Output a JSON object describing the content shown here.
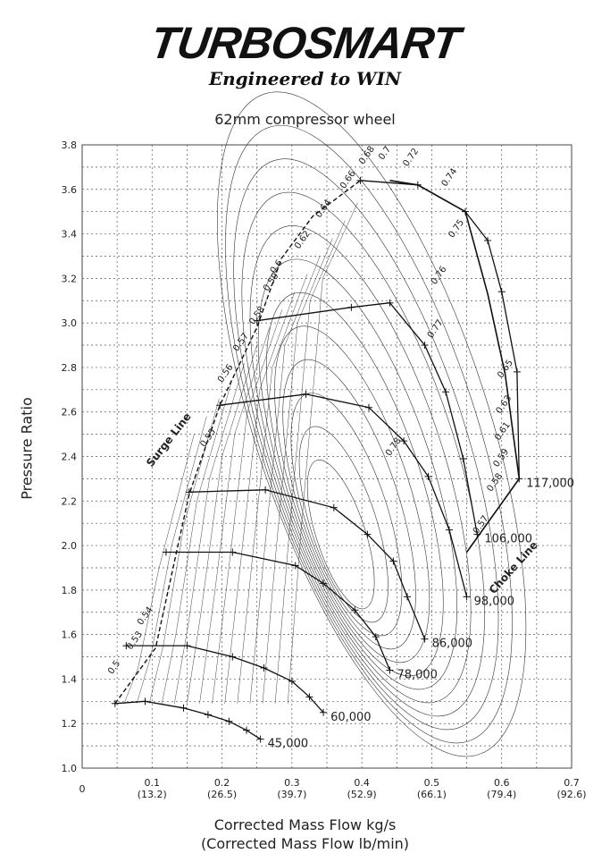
{
  "brand": {
    "logo_text": "TURBOSMART",
    "tagline": "Engineered to WIN"
  },
  "chart_data": {
    "type": "line",
    "title": "62mm compressor wheel",
    "xlabel": "Corrected Mass Flow kg/s",
    "xlabel2": "(Corrected Mass Flow lb/min)",
    "ylabel": "Pressure Ratio",
    "xlim": [
      0,
      0.7
    ],
    "ylim": [
      1.0,
      3.8
    ],
    "grid": true,
    "x_ticks": [
      "0",
      "0.1",
      "0.2",
      "0.3",
      "0.4",
      "0.5",
      "0.6",
      "0.7"
    ],
    "x_ticks_secondary": [
      "",
      "(13.2)",
      "(26.5)",
      "(39.7)",
      "(52.9)",
      "(66.1)",
      "(79.4)",
      "(92.6)"
    ],
    "y_ticks": [
      "1.0",
      "1.2",
      "1.4",
      "1.6",
      "1.8",
      "2.0",
      "2.2",
      "2.4",
      "2.6",
      "2.8",
      "3.0",
      "3.2",
      "3.4",
      "3.6",
      "3.8"
    ],
    "surge_line": {
      "label": "Surge Line",
      "points": [
        [
          0.047,
          1.29
        ],
        [
          0.105,
          1.54
        ],
        [
          0.153,
          2.23
        ],
        [
          0.197,
          2.63
        ],
        [
          0.25,
          2.98
        ],
        [
          0.285,
          3.29
        ],
        [
          0.33,
          3.48
        ],
        [
          0.398,
          3.64
        ]
      ]
    },
    "choke_line": {
      "label": "Choke Line",
      "points": [
        [
          0.44,
          3.64
        ],
        [
          0.48,
          3.62
        ],
        [
          0.548,
          3.5
        ],
        [
          0.58,
          3.13
        ],
        [
          0.605,
          2.77
        ],
        [
          0.625,
          2.3
        ],
        [
          0.55,
          1.97
        ]
      ]
    },
    "speed_lines": [
      {
        "label": "45,000",
        "points": [
          [
            0.047,
            1.29
          ],
          [
            0.09,
            1.3
          ],
          [
            0.145,
            1.27
          ],
          [
            0.18,
            1.24
          ],
          [
            0.21,
            1.21
          ],
          [
            0.235,
            1.17
          ],
          [
            0.255,
            1.13
          ]
        ]
      },
      {
        "label": "60,000",
        "points": [
          [
            0.063,
            1.55
          ],
          [
            0.15,
            1.55
          ],
          [
            0.215,
            1.5
          ],
          [
            0.26,
            1.45
          ],
          [
            0.3,
            1.39
          ],
          [
            0.325,
            1.32
          ],
          [
            0.345,
            1.25
          ]
        ]
      },
      {
        "label": "78,000",
        "points": [
          [
            0.12,
            1.97
          ],
          [
            0.215,
            1.97
          ],
          [
            0.305,
            1.91
          ],
          [
            0.345,
            1.83
          ],
          [
            0.39,
            1.71
          ],
          [
            0.42,
            1.59
          ],
          [
            0.44,
            1.44
          ]
        ]
      },
      {
        "label": "86,000",
        "points": [
          [
            0.153,
            2.24
          ],
          [
            0.262,
            2.25
          ],
          [
            0.36,
            2.17
          ],
          [
            0.408,
            2.05
          ],
          [
            0.445,
            1.93
          ],
          [
            0.465,
            1.77
          ],
          [
            0.49,
            1.58
          ]
        ]
      },
      {
        "label": "98,000",
        "points": [
          [
            0.197,
            2.63
          ],
          [
            0.32,
            2.68
          ],
          [
            0.41,
            2.62
          ],
          [
            0.46,
            2.47
          ],
          [
            0.495,
            2.31
          ],
          [
            0.525,
            2.07
          ],
          [
            0.55,
            1.77
          ]
        ]
      },
      {
        "label": "106,000",
        "points": [
          [
            0.25,
            3.01
          ],
          [
            0.385,
            3.07
          ],
          [
            0.44,
            3.09
          ],
          [
            0.49,
            2.9
          ],
          [
            0.52,
            2.69
          ],
          [
            0.545,
            2.39
          ],
          [
            0.565,
            2.05
          ]
        ]
      },
      {
        "label": "117,000",
        "points": [
          [
            0.398,
            3.64
          ],
          [
            0.48,
            3.62
          ],
          [
            0.548,
            3.5
          ],
          [
            0.58,
            3.37
          ],
          [
            0.6,
            3.14
          ],
          [
            0.622,
            2.78
          ],
          [
            0.625,
            2.3
          ]
        ]
      }
    ],
    "efficiency_labels": [
      {
        "text": "0.5",
        "x": 0.043,
        "y": 1.42
      },
      {
        "text": "0.53",
        "x": 0.07,
        "y": 1.53
      },
      {
        "text": "0.54",
        "x": 0.085,
        "y": 1.64
      },
      {
        "text": "0.55",
        "x": 0.175,
        "y": 2.44
      },
      {
        "text": "0.56",
        "x": 0.2,
        "y": 2.73
      },
      {
        "text": "0.57",
        "x": 0.222,
        "y": 2.87
      },
      {
        "text": "0.58",
        "x": 0.245,
        "y": 2.99
      },
      {
        "text": "0.59",
        "x": 0.265,
        "y": 3.14
      },
      {
        "text": "0.6",
        "x": 0.275,
        "y": 3.22
      },
      {
        "text": "0.62",
        "x": 0.31,
        "y": 3.33
      },
      {
        "text": "0.64",
        "x": 0.34,
        "y": 3.47
      },
      {
        "text": "0.66",
        "x": 0.375,
        "y": 3.6
      },
      {
        "text": "0.68",
        "x": 0.402,
        "y": 3.71
      },
      {
        "text": "0.7",
        "x": 0.43,
        "y": 3.73
      },
      {
        "text": "0.72",
        "x": 0.465,
        "y": 3.7
      },
      {
        "text": "0.74",
        "x": 0.52,
        "y": 3.61
      },
      {
        "text": "0.75",
        "x": 0.53,
        "y": 3.38
      },
      {
        "text": "0.76",
        "x": 0.505,
        "y": 3.17
      },
      {
        "text": "0.77",
        "x": 0.5,
        "y": 2.93
      },
      {
        "text": "0.78",
        "x": 0.44,
        "y": 2.4
      },
      {
        "text": "0.65",
        "x": 0.6,
        "y": 2.75
      },
      {
        "text": "0.63",
        "x": 0.598,
        "y": 2.59
      },
      {
        "text": "0.61",
        "x": 0.596,
        "y": 2.47
      },
      {
        "text": "0.59",
        "x": 0.594,
        "y": 2.35
      },
      {
        "text": "0.58",
        "x": 0.585,
        "y": 2.24
      },
      {
        "text": "0.57",
        "x": 0.565,
        "y": 2.05
      }
    ]
  }
}
